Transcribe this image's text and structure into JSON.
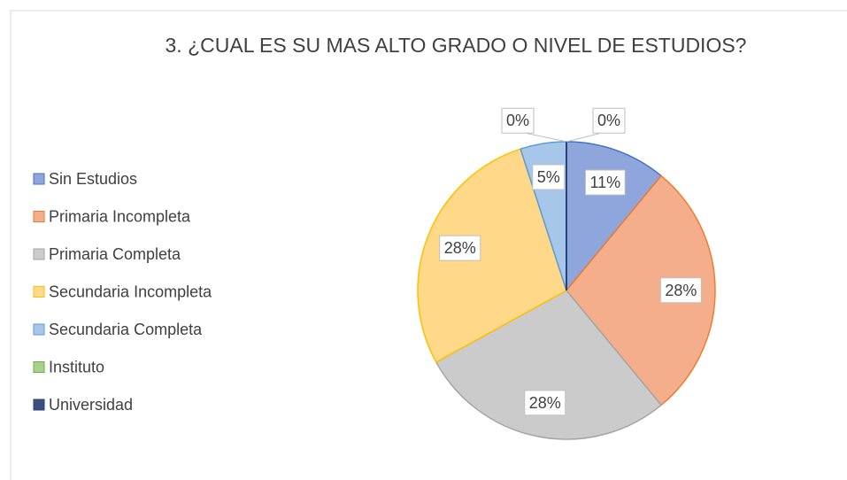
{
  "chart_data": {
    "type": "pie",
    "title": "3. ¿CUAL ES SU MAS ALTO GRADO O NIVEL DE ESTUDIOS?",
    "categories": [
      "Sin Estudios",
      "Primaria Incompleta",
      "Primaria Completa",
      "Secundaria Incompleta",
      "Secundaria Completa",
      "Instituto",
      "Universidad"
    ],
    "values": [
      11,
      28,
      28,
      28,
      5,
      0,
      0
    ],
    "value_labels": [
      "11%",
      "28%",
      "28%",
      "28%",
      "5%",
      "0%",
      "0%"
    ],
    "colors": [
      "#8fa6dc",
      "#f5ae8c",
      "#cbcbcb",
      "#ffd88a",
      "#a7c7ea",
      "#a9d18e",
      "#3a4f7a"
    ],
    "edge_colors": [
      "#4472c4",
      "#ed7d31",
      "#a5a5a5",
      "#ffc000",
      "#5b9bd5",
      "#70ad47",
      "#264478"
    ],
    "legend": "left"
  }
}
